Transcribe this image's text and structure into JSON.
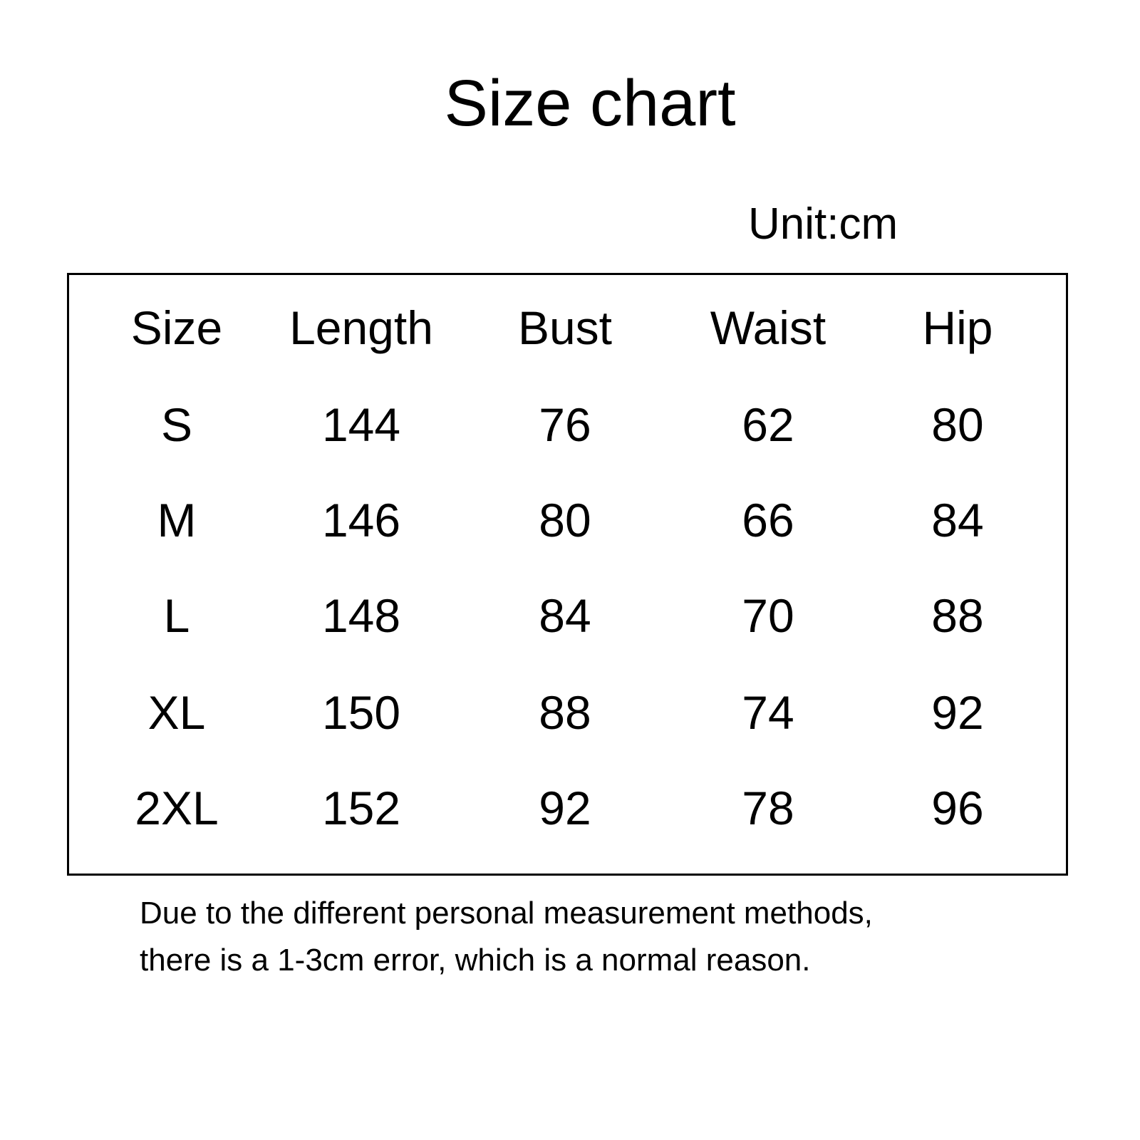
{
  "title": "Size chart",
  "unit": "Unit:cm",
  "table": {
    "headers": [
      "Size",
      "Length",
      "Bust",
      "Waist",
      "Hip"
    ],
    "rows": [
      [
        "S",
        "144",
        "76",
        "62",
        "80"
      ],
      [
        "M",
        "146",
        "80",
        "66",
        "84"
      ],
      [
        "L",
        "148",
        "84",
        "70",
        "88"
      ],
      [
        "XL",
        "150",
        "88",
        "74",
        "92"
      ],
      [
        "2XL",
        "152",
        "92",
        "78",
        "96"
      ]
    ]
  },
  "note": {
    "line1": "Due to the different personal measurement methods,",
    "line2": "there is a 1-3cm error, which is a normal reason."
  }
}
